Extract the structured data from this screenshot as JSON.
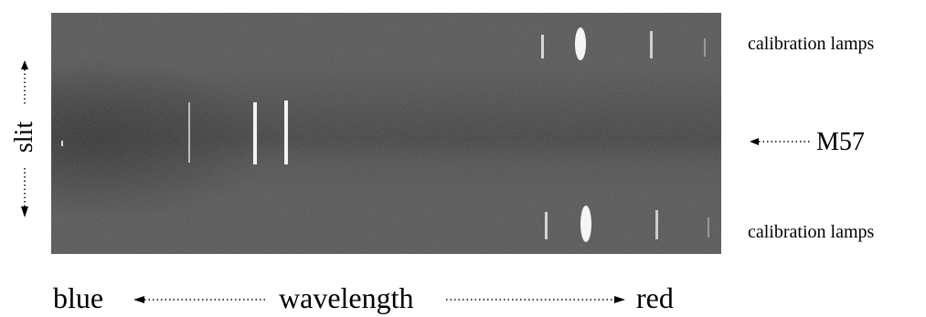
{
  "labels": {
    "calibration_top": "calibration lamps",
    "calibration_bottom": "calibration lamps",
    "object": "M57",
    "slit": "slit",
    "blue": "blue",
    "wavelength": "wavelength",
    "red": "red"
  },
  "colors": {
    "background": "#ffffff",
    "text": "#000000",
    "spectrum_background": "#3b3b3b",
    "emission_line": "#f4f4f4"
  }
}
